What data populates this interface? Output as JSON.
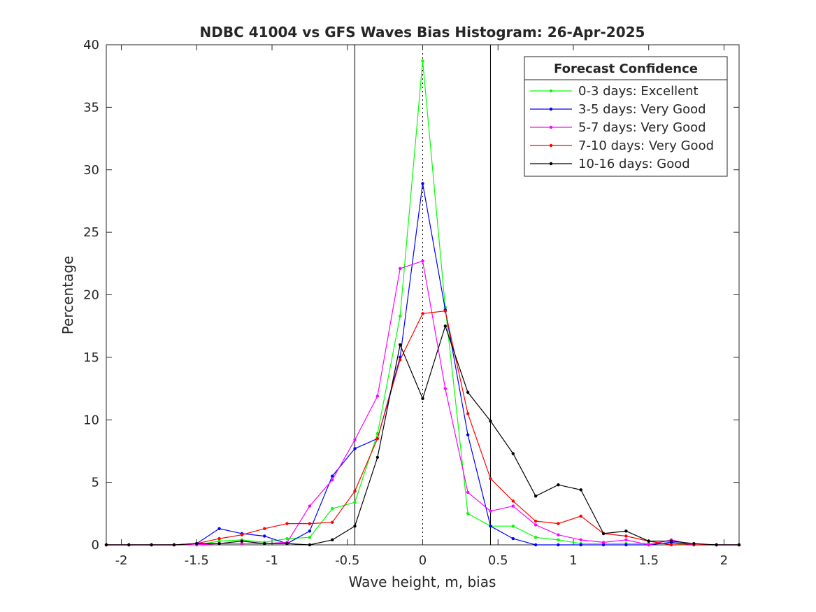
{
  "chart_data": {
    "type": "line",
    "title": "NDBC 41004 vs GFS Waves Bias Histogram: 26-Apr-2025",
    "xlabel": "Wave height, m, bias",
    "ylabel": "Percentage",
    "xlim": [
      -2.1,
      2.1
    ],
    "ylim": [
      0,
      40
    ],
    "xticks": [
      -2,
      -1.5,
      -1,
      -0.5,
      0,
      0.5,
      1,
      1.5,
      2
    ],
    "xtick_labels": [
      "-2",
      "-1.5",
      "-1",
      "-0.5",
      "0",
      "0.5",
      "1",
      "1.5",
      "2"
    ],
    "yticks": [
      0,
      5,
      10,
      15,
      20,
      25,
      30,
      35,
      40
    ],
    "ytick_labels": [
      "0",
      "5",
      "10",
      "15",
      "20",
      "25",
      "30",
      "35",
      "40"
    ],
    "grid": false,
    "reference_lines": {
      "solid_x": [
        -0.45,
        0.45
      ],
      "dotted_x": [
        0
      ]
    },
    "legend": {
      "title": "Forecast Confidence",
      "position": "top-right"
    },
    "x": [
      -2.1,
      -1.95,
      -1.8,
      -1.65,
      -1.5,
      -1.35,
      -1.2,
      -1.05,
      -0.9,
      -0.75,
      -0.6,
      -0.45,
      -0.3,
      -0.15,
      0.0,
      0.15,
      0.3,
      0.45,
      0.6,
      0.75,
      0.9,
      1.05,
      1.2,
      1.35,
      1.5,
      1.65,
      1.8,
      1.95,
      2.1
    ],
    "series": [
      {
        "name": "0-3 days: Excellent",
        "color": "#00ff00",
        "values": [
          0,
          0,
          0,
          0,
          0,
          0.3,
          0.4,
          0.2,
          0.5,
          0.6,
          2.9,
          3.4,
          8.9,
          18.3,
          38.7,
          19.0,
          2.5,
          1.5,
          1.5,
          0.6,
          0.4,
          0.1,
          0.1,
          0.1,
          0.1,
          0.1,
          0,
          0,
          0
        ]
      },
      {
        "name": "3-5 days: Very Good",
        "color": "#0000ff",
        "values": [
          0,
          0,
          0,
          0,
          0.1,
          1.3,
          0.9,
          0.7,
          0.1,
          1.1,
          5.5,
          7.7,
          8.5,
          15.0,
          28.9,
          18.8,
          8.8,
          1.5,
          0.5,
          0,
          0,
          0,
          0,
          0,
          0,
          0.2,
          0,
          0,
          0
        ]
      },
      {
        "name": "5-7 days: Very Good",
        "color": "#ff00ff",
        "values": [
          0,
          0,
          0,
          0,
          0,
          0.1,
          0.1,
          0.1,
          0.2,
          3.1,
          5.2,
          8.4,
          11.9,
          22.1,
          22.7,
          12.5,
          4.2,
          2.7,
          3.1,
          1.6,
          0.8,
          0.4,
          0.2,
          0.4,
          0,
          0.4,
          0,
          0,
          0
        ]
      },
      {
        "name": "7-10 days: Very Good",
        "color": "#ff0000",
        "values": [
          0,
          0,
          0,
          0,
          0.1,
          0.5,
          0.8,
          1.3,
          1.7,
          1.7,
          1.8,
          4.3,
          8.5,
          14.8,
          18.5,
          18.7,
          10.5,
          5.3,
          3.5,
          1.9,
          1.7,
          2.3,
          0.9,
          0.7,
          0.3,
          0,
          0,
          0,
          0
        ]
      },
      {
        "name": "10-16 days: Good",
        "color": "#000000",
        "values": [
          0,
          0,
          0,
          0,
          0.1,
          0.1,
          0.3,
          0.1,
          0.1,
          0,
          0.4,
          1.5,
          7.0,
          16.0,
          11.7,
          17.5,
          12.2,
          9.9,
          7.3,
          3.9,
          4.8,
          4.4,
          0.9,
          1.1,
          0.3,
          0.3,
          0.1,
          0,
          0
        ]
      }
    ]
  }
}
